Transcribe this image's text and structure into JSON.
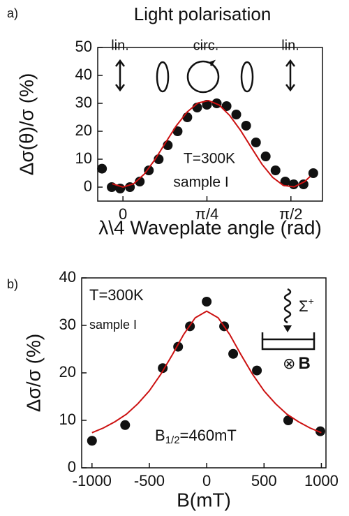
{
  "chart_data": [
    {
      "type": "scatter",
      "title": "Light polarisation",
      "x_label": "λ\\4 Waveplate angle (rad)",
      "y_label": "Δσ(θ)/σ (%)",
      "annotations": [
        "a)",
        "lin.",
        "circ.",
        "lin.",
        "T=300K",
        "sample I"
      ],
      "xlim": [
        -0.236,
        1.866
      ],
      "ylim": [
        -5,
        50
      ],
      "xticks": [
        {
          "value": 0,
          "label": "0"
        },
        {
          "value": 0.785398,
          "label": "π/4"
        },
        {
          "value": 1.570796,
          "label": "π/2"
        }
      ],
      "yticks": [
        0,
        10,
        20,
        30,
        40,
        50
      ],
      "series": [
        {
          "type": "scatter",
          "color": "#111111",
          "x": [
            -0.196,
            -0.105,
            -0.026,
            0.065,
            0.157,
            0.242,
            0.334,
            0.419,
            0.511,
            0.602,
            0.694,
            0.785,
            0.877,
            0.969,
            1.06,
            1.152,
            1.244,
            1.335,
            1.427,
            1.518,
            1.597,
            1.689,
            1.78
          ],
          "values": [
            6.6,
            0,
            -0.5,
            0,
            2,
            6,
            10,
            15,
            20,
            25,
            28.5,
            29.5,
            30,
            29,
            26,
            22,
            16,
            11,
            6,
            2,
            1,
            1,
            5
          ]
        },
        {
          "type": "line",
          "color": "#cc1111",
          "x": [
            -0.1,
            0,
            0.1,
            0.2,
            0.3,
            0.4,
            0.5,
            0.6,
            0.7,
            0.8,
            0.9,
            1.0,
            1.1,
            1.2,
            1.3,
            1.4,
            1.5,
            1.6,
            1.7,
            1.75
          ],
          "values": [
            1.2,
            0,
            1.2,
            4.7,
            9.9,
            16.0,
            22.0,
            26.9,
            30.1,
            31.0,
            29.4,
            25.6,
            20.3,
            14.2,
            8.2,
            3.5,
            0.6,
            0.1,
            2.0,
            3.8
          ]
        }
      ]
    },
    {
      "type": "scatter",
      "x_label": "B(mT)",
      "y_label": "Δσ/σ (%)",
      "annotations": [
        "b)",
        "T=300K",
        "sample I",
        "Σ",
        "+",
        "⊗",
        "B"
      ],
      "b_half": {
        "symbol": "B",
        "subscript": "1/2",
        "rest": "=460mT"
      },
      "xlim": [
        -1090,
        1040
      ],
      "ylim": [
        0,
        40
      ],
      "xticks": [
        -1000,
        -500,
        0,
        500,
        1000
      ],
      "yticks": [
        0,
        10,
        20,
        30,
        40
      ],
      "series": [
        {
          "type": "scatter",
          "color": "#111111",
          "x": [
            -1000,
            -711,
            -383,
            -249,
            -146,
            0,
            152,
            231,
            438,
            711,
            991
          ],
          "values": [
            5.7,
            9,
            21,
            25.5,
            29.8,
            35,
            29.8,
            24,
            20.5,
            10,
            7.7
          ]
        },
        {
          "type": "line",
          "color": "#cc1111",
          "x": [
            -1000,
            -900,
            -800,
            -700,
            -600,
            -500,
            -400,
            -300,
            -200,
            -100,
            0,
            100,
            200,
            300,
            400,
            500,
            600,
            700,
            800,
            900,
            1000
          ],
          "values": [
            7.4,
            8.4,
            9.7,
            11.3,
            13.5,
            16.2,
            19.7,
            23.8,
            28.1,
            31.6,
            33,
            31.6,
            28.1,
            23.8,
            19.7,
            16.2,
            13.5,
            11.3,
            9.7,
            8.4,
            7.4
          ]
        }
      ]
    }
  ]
}
